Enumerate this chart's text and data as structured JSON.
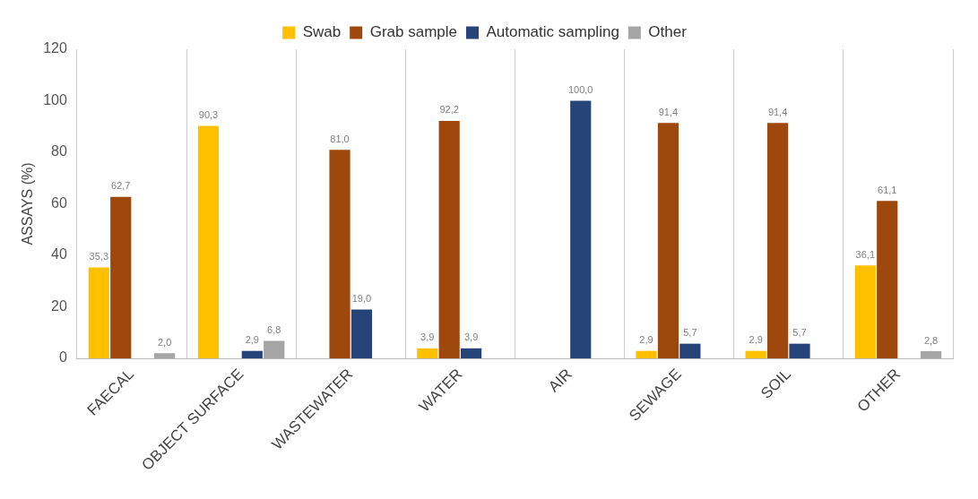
{
  "chart_data": {
    "type": "bar",
    "ylabel": "ASSAYS (%)",
    "categories": [
      "FAECAL",
      "OBJECT SURFACE",
      "WASTEWATER",
      "WATER",
      "AIR",
      "SEWAGE",
      "SOIL",
      "OTHER"
    ],
    "series": [
      {
        "name": "Swab",
        "color": "#ffc000",
        "values": [
          35.3,
          90.3,
          null,
          3.9,
          null,
          2.9,
          2.9,
          36.1
        ],
        "value_labels": [
          "35,3",
          "90,3",
          null,
          "3,9",
          null,
          "2,9",
          "2,9",
          "36,1"
        ]
      },
      {
        "name": "Grab sample",
        "color": "#9e480e",
        "values": [
          62.7,
          null,
          81.0,
          92.2,
          null,
          91.4,
          91.4,
          61.1
        ],
        "value_labels": [
          "62,7",
          null,
          "81,0",
          "92,2",
          null,
          "91,4",
          "91,4",
          "61,1"
        ]
      },
      {
        "name": "Automatic sampling",
        "color": "#264478",
        "values": [
          null,
          2.9,
          19.0,
          3.9,
          100.0,
          5.7,
          5.7,
          null
        ],
        "value_labels": [
          null,
          "2,9",
          "19,0",
          "3,9",
          "100,0",
          "5,7",
          "5,7",
          null
        ]
      },
      {
        "name": "Other",
        "color": "#a5a5a5",
        "values": [
          2.0,
          6.8,
          null,
          null,
          null,
          null,
          null,
          2.8
        ],
        "value_labels": [
          "2,0",
          "6,8",
          null,
          null,
          null,
          null,
          null,
          "2,8"
        ]
      }
    ],
    "ylim": [
      0,
      120
    ],
    "yticks": [
      0,
      20,
      40,
      60,
      80,
      100,
      120
    ],
    "grid": "x",
    "legend": "top"
  }
}
